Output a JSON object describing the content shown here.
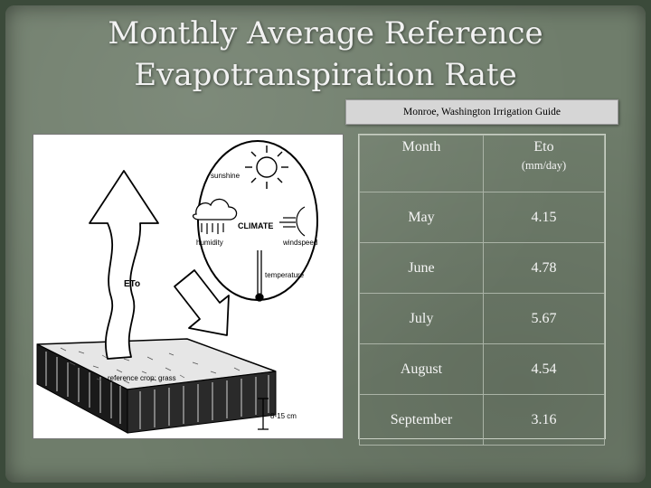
{
  "slide": {
    "title_line1": "Monthly Average Reference",
    "title_line2": "Evapotranspiration Rate",
    "subtitle": "Monroe, Washington Irrigation Guide"
  },
  "figure": {
    "labels": {
      "sunshine": "sunshine",
      "climate": "CLIMATE",
      "humidity": "humidity",
      "windspeed": "windspeed",
      "temperature": "temperature",
      "eto": "ETo",
      "reference_crop": "reference crop: grass",
      "height": "8-15 cm"
    }
  },
  "table": {
    "header": {
      "month": "Month",
      "eto": "Eto",
      "units": "(mm/day)"
    },
    "rows": [
      {
        "month": "May",
        "eto": "4.15"
      },
      {
        "month": "June",
        "eto": "4.78"
      },
      {
        "month": "July",
        "eto": "5.67"
      },
      {
        "month": "August",
        "eto": "4.54"
      },
      {
        "month": "September",
        "eto": "3.16"
      }
    ]
  }
}
